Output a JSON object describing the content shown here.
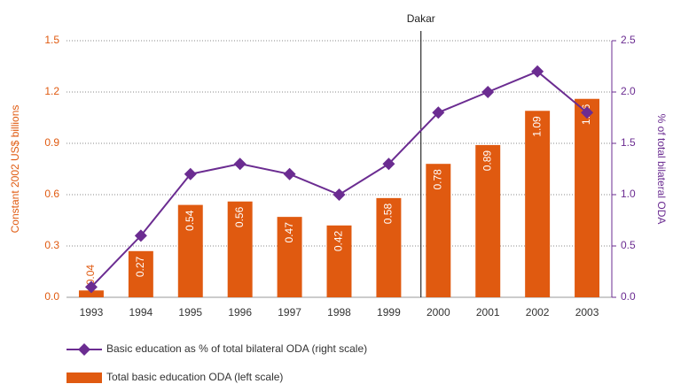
{
  "chart_data": {
    "type": "bar_line",
    "categories": [
      "1993",
      "1994",
      "1995",
      "1996",
      "1997",
      "1998",
      "1999",
      "2000",
      "2001",
      "2002",
      "2003"
    ],
    "series": [
      {
        "name": "Total basic education ODA (left scale)",
        "type": "bar",
        "color": "#e05a10",
        "values": [
          0.04,
          0.27,
          0.54,
          0.56,
          0.47,
          0.42,
          0.58,
          0.78,
          0.89,
          1.09,
          1.16
        ]
      },
      {
        "name": "Basic education as % of total bilateral ODA (right scale)",
        "type": "line",
        "axis": "y2",
        "color": "#6b2c91",
        "values": [
          0.1,
          0.6,
          1.2,
          1.3,
          1.2,
          1.0,
          1.3,
          1.8,
          2.0,
          2.2,
          1.8
        ]
      }
    ],
    "ylabel": "Constant 2002 US$ billions",
    "y2label": "% of total bilateral ODA",
    "ylim": [
      0,
      1.5
    ],
    "yticks": [
      {
        "value": 0,
        "label": "0.0"
      },
      0.3,
      0.6,
      0.9,
      1.2,
      1.5
    ],
    "y2lim": [
      0,
      2.5
    ],
    "y2ticks": [
      {
        "value": 0,
        "label": "0.0"
      },
      0.5,
      {
        "value": 1,
        "label": "1.0"
      },
      1.5,
      {
        "value": 2,
        "label": "2.0"
      },
      2.5
    ],
    "annotations": [
      {
        "text": "Dakar",
        "x": "2000"
      }
    ],
    "grid": true
  }
}
